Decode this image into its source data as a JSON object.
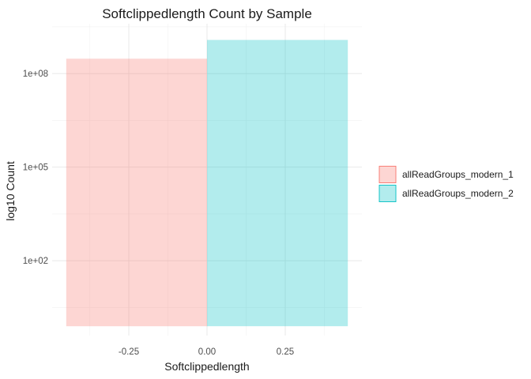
{
  "chart_data": {
    "type": "bar",
    "title": "Softclippedlength Count by Sample",
    "xlabel": "Softclippedlength",
    "ylabel": "log10 Count",
    "y_scale": "log10",
    "x_ticks": [
      -0.25,
      0.0,
      0.25
    ],
    "x_tick_labels": [
      "-0.25",
      "0.00",
      "0.25"
    ],
    "y_ticks": [
      100,
      100000,
      100000000
    ],
    "y_tick_labels": [
      "1e+02",
      "1e+05",
      "1e+08"
    ],
    "xlim": [
      -0.495,
      0.495
    ],
    "ylim_log10": [
      -0.4,
      9.6
    ],
    "grid": true,
    "legend_position": "right",
    "series": [
      {
        "name": "allReadGroups_modern_1",
        "x_range": [
          -0.45,
          0.0
        ],
        "value": 300000000,
        "fill": "#F8766D",
        "outline": "#F8766D"
      },
      {
        "name": "allReadGroups_modern_2",
        "x_range": [
          0.0,
          0.45
        ],
        "value": 1200000000,
        "fill": "#00BFC4",
        "outline": "#00BFC4"
      }
    ]
  }
}
